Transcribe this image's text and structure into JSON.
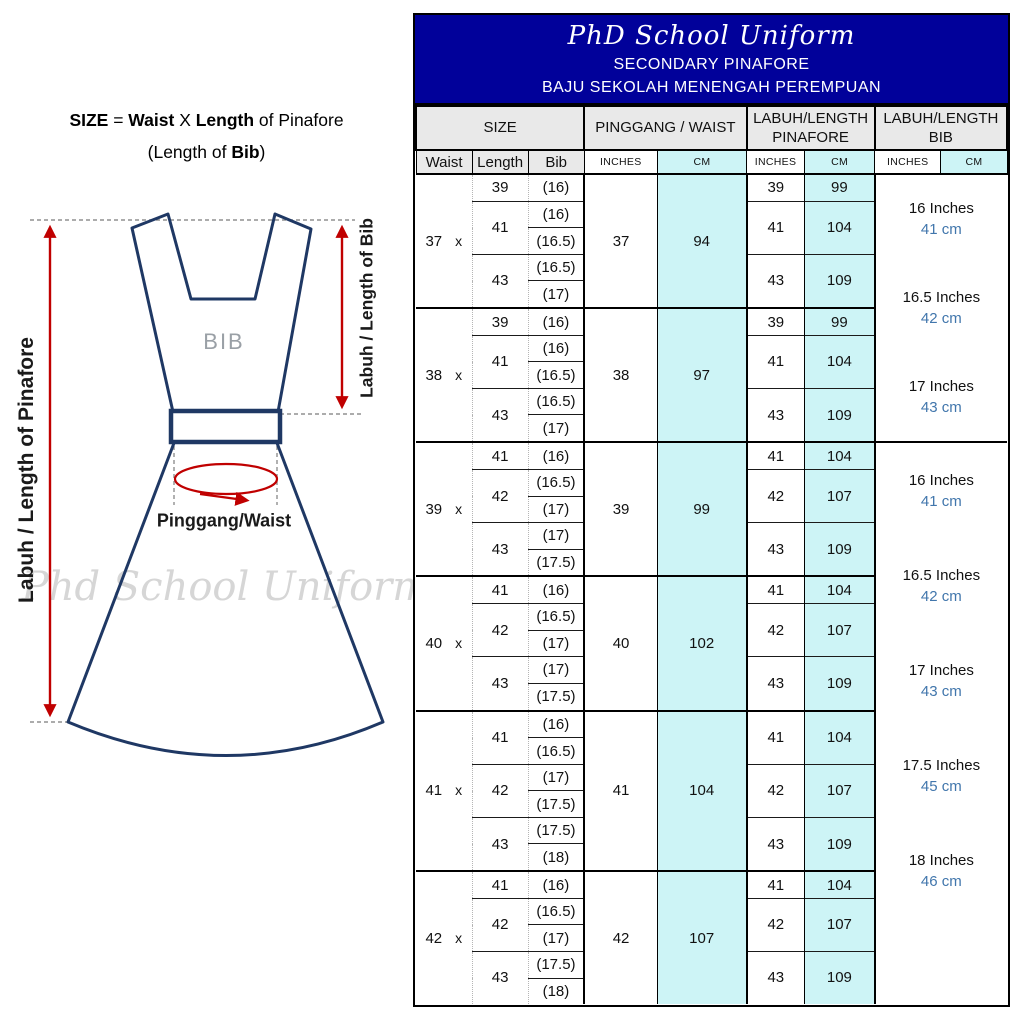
{
  "colors": {
    "header_bg": "#01019a",
    "cm_bg": "#cdf4f6",
    "subheader_bg": "#e9e9e9",
    "cm_text": "#4176ac",
    "outline_navy": "#1f3864",
    "arrow_red": "#c00000",
    "dashed_gray": "#909090",
    "watermark_gray": "#d6d6d6"
  },
  "left_panel": {
    "formula_line1": [
      [
        "SIZE",
        true
      ],
      [
        " = ",
        false
      ],
      [
        "Waist",
        true
      ],
      [
        " X ",
        false
      ],
      [
        "Length",
        true
      ],
      [
        " of Pinafore",
        false
      ]
    ],
    "formula_line2": [
      [
        "(Length of ",
        false
      ],
      [
        "Bib",
        true
      ],
      [
        ")",
        false
      ]
    ],
    "diagram": {
      "bib_label": "BIB",
      "waist_label": "Pinggang/Waist",
      "length_pinafore_label": "Labuh / Length of Pinafore",
      "length_bib_label": "Labuh / Length of Bib",
      "watermark": "Phd School Uniform"
    }
  },
  "table": {
    "title": "PhD School Uniform",
    "subtitle1": "SECONDARY PINAFORE",
    "subtitle2": "BAJU SEKOLAH MENENGAH PEREMPUAN",
    "groups": [
      "SIZE",
      "PINGGANG / WAIST",
      "LABUH/LENGTH PINAFORE",
      "LABUH/LENGTH BIB"
    ],
    "subheaders": [
      "Waist",
      "Length",
      "Bib",
      "INCHES",
      "CM",
      "INCHES",
      "CM",
      "INCHES",
      "CM"
    ],
    "blocks": [
      {
        "waist": "37",
        "x_label": "x",
        "pinggang": {
          "inches": "37",
          "cm": "94"
        },
        "length_groups": [
          {
            "length": "39",
            "bibs": [
              "(16)"
            ],
            "pinafore": {
              "inches": "39",
              "cm": "99"
            }
          },
          {
            "length": "41",
            "bibs": [
              "(16)",
              "(16.5)"
            ],
            "pinafore": {
              "inches": "41",
              "cm": "104"
            }
          },
          {
            "length": "43",
            "bibs": [
              "(16.5)",
              "(17)"
            ],
            "pinafore": {
              "inches": "43",
              "cm": "109"
            }
          }
        ]
      },
      {
        "waist": "38",
        "x_label": "x",
        "pinggang": {
          "inches": "38",
          "cm": "97"
        },
        "length_groups": [
          {
            "length": "39",
            "bibs": [
              "(16)"
            ],
            "pinafore": {
              "inches": "39",
              "cm": "99"
            }
          },
          {
            "length": "41",
            "bibs": [
              "(16)",
              "(16.5)"
            ],
            "pinafore": {
              "inches": "41",
              "cm": "104"
            }
          },
          {
            "length": "43",
            "bibs": [
              "(16.5)",
              "(17)"
            ],
            "pinafore": {
              "inches": "43",
              "cm": "109"
            }
          }
        ]
      },
      {
        "waist": "39",
        "x_label": "x",
        "pinggang": {
          "inches": "39",
          "cm": "99"
        },
        "length_groups": [
          {
            "length": "41",
            "bibs": [
              "(16)"
            ],
            "pinafore": {
              "inches": "41",
              "cm": "104"
            }
          },
          {
            "length": "42",
            "bibs": [
              "(16.5)",
              "(17)"
            ],
            "pinafore": {
              "inches": "42",
              "cm": "107"
            }
          },
          {
            "length": "43",
            "bibs": [
              "(17)",
              "(17.5)"
            ],
            "pinafore": {
              "inches": "43",
              "cm": "109"
            }
          }
        ]
      },
      {
        "waist": "40",
        "x_label": "x",
        "pinggang": {
          "inches": "40",
          "cm": "102"
        },
        "length_groups": [
          {
            "length": "41",
            "bibs": [
              "(16)"
            ],
            "pinafore": {
              "inches": "41",
              "cm": "104"
            }
          },
          {
            "length": "42",
            "bibs": [
              "(16.5)",
              "(17)"
            ],
            "pinafore": {
              "inches": "42",
              "cm": "107"
            }
          },
          {
            "length": "43",
            "bibs": [
              "(17)",
              "(17.5)"
            ],
            "pinafore": {
              "inches": "43",
              "cm": "109"
            }
          }
        ]
      },
      {
        "waist": "41",
        "x_label": "x",
        "pinggang": {
          "inches": "41",
          "cm": "104"
        },
        "length_groups": [
          {
            "length": "41",
            "bibs": [
              "(16)",
              "(16.5)"
            ],
            "pinafore": {
              "inches": "41",
              "cm": "104"
            }
          },
          {
            "length": "42",
            "bibs": [
              "(17)",
              "(17.5)"
            ],
            "pinafore": {
              "inches": "42",
              "cm": "107"
            }
          },
          {
            "length": "43",
            "bibs": [
              "(17.5)",
              "(18)"
            ],
            "pinafore": {
              "inches": "43",
              "cm": "109"
            }
          }
        ]
      },
      {
        "waist": "42",
        "x_label": "x",
        "pinggang": {
          "inches": "42",
          "cm": "107"
        },
        "length_groups": [
          {
            "length": "41",
            "bibs": [
              "(16)"
            ],
            "pinafore": {
              "inches": "41",
              "cm": "104"
            }
          },
          {
            "length": "42",
            "bibs": [
              "(16.5)",
              "(17)"
            ],
            "pinafore": {
              "inches": "42",
              "cm": "107"
            }
          },
          {
            "length": "43",
            "bibs": [
              "(17.5)",
              "(18)"
            ],
            "pinafore": {
              "inches": "43",
              "cm": "109"
            }
          }
        ]
      }
    ],
    "bib_spans": [
      {
        "blocks": [
          0,
          1
        ],
        "entries": [
          {
            "inches": "16 Inches",
            "cm": "41 cm"
          },
          {
            "inches": "16.5 Inches",
            "cm": "42 cm"
          },
          {
            "inches": "17 Inches",
            "cm": "43 cm"
          }
        ]
      },
      {
        "blocks": [
          2,
          3,
          4,
          5
        ],
        "entries": [
          {
            "inches": "16 Inches",
            "cm": "41 cm"
          },
          {
            "inches": "16.5 Inches",
            "cm": "42 cm"
          },
          {
            "inches": "17 Inches",
            "cm": "43 cm"
          },
          {
            "inches": "17.5 Inches",
            "cm": "45 cm"
          },
          {
            "inches": "18 Inches",
            "cm": "46 cm"
          }
        ]
      }
    ]
  }
}
